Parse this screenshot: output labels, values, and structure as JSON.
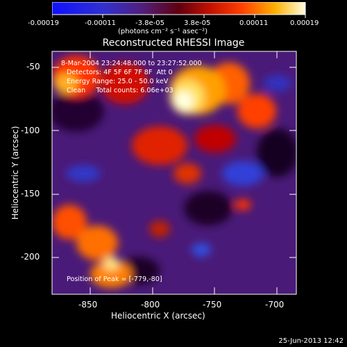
{
  "colorbar": {
    "ticks": [
      "-0.00019",
      "-0.00011",
      "-3.8e-05",
      "3.8e-05",
      "0.00011",
      "0.00019"
    ],
    "units": "(photons cm⁻² s⁻¹ asec⁻²)"
  },
  "title": "Reconstructed RHESSI Image",
  "annotations": {
    "time": "8-Mar-2004 23:24:48.000 to 23:27:52.000",
    "detectors": "Detectors: 4F 5F 6F 7F 8F  Att 0",
    "energy": "Energy Range: 25.0 - 50.0 keV",
    "clean": "Clean     Total counts: 6.06e+03",
    "peak": "Position of Peak = [-779,-80]"
  },
  "axes": {
    "xlabel": "Heliocentric X (arcsec)",
    "ylabel": "Heliocentric Y (arcsec)",
    "xticks": [
      "-850",
      "-800",
      "-750",
      "-700"
    ],
    "yticks": [
      "-50",
      "-100",
      "-150",
      "-200"
    ]
  },
  "footer": {
    "date": "25-Jun-2013 12:42"
  },
  "colors": {
    "negative": "#2040ff",
    "low": "#502080",
    "mid": "#ff2000",
    "high": "#ffffd0"
  }
}
